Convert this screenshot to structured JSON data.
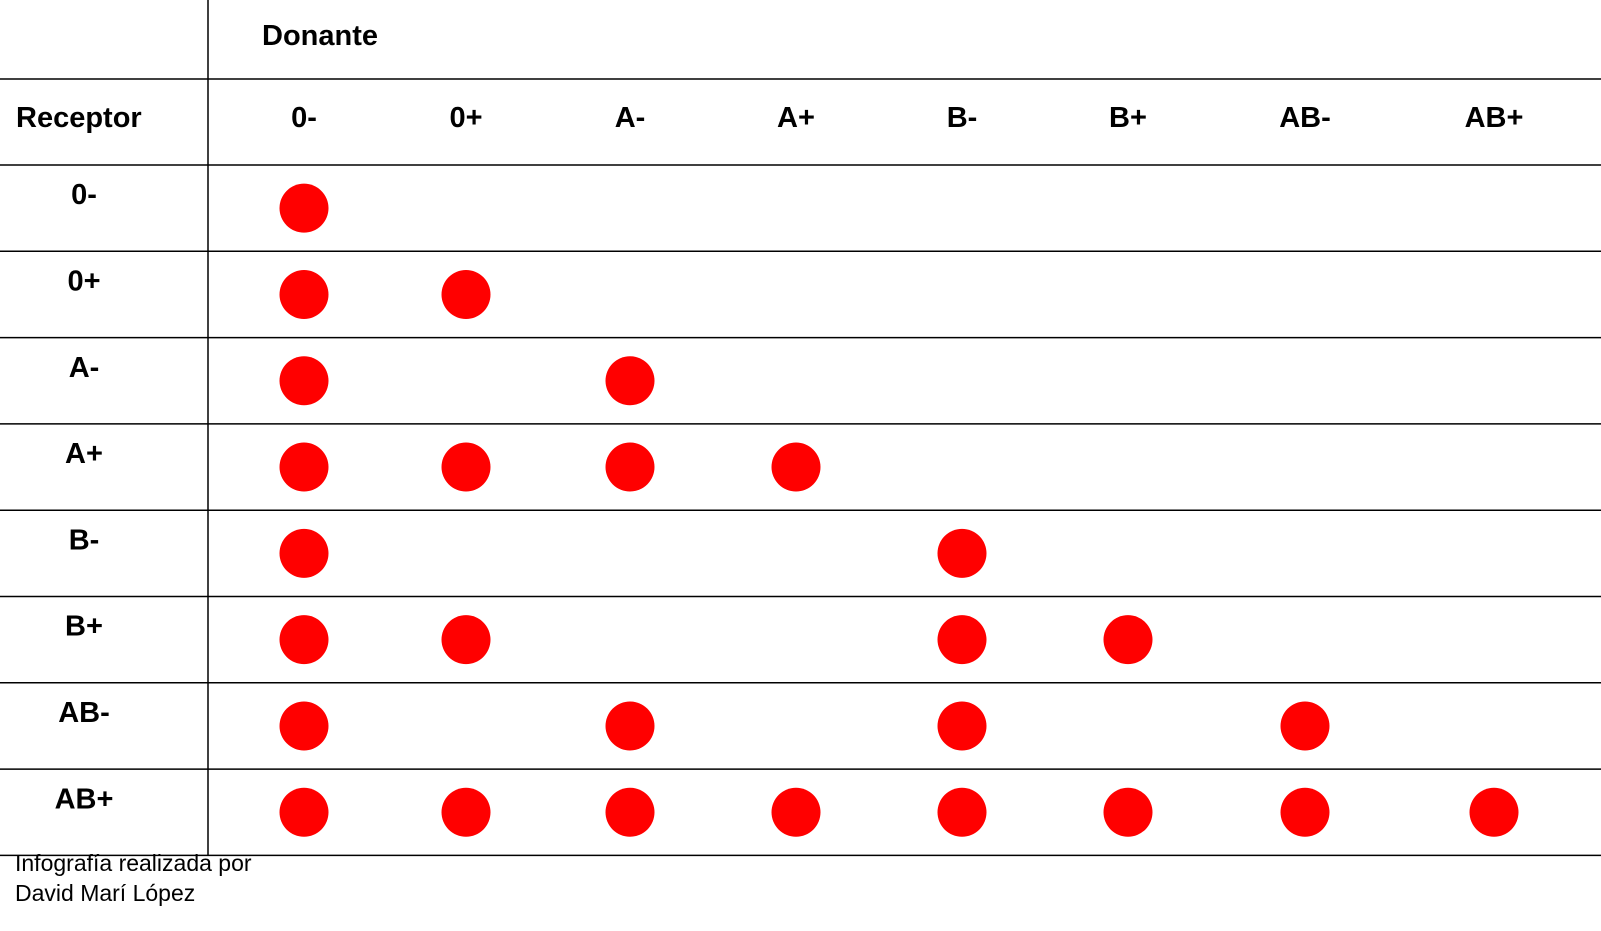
{
  "chart_data": {
    "type": "table",
    "title": "",
    "column_header": "Donante",
    "row_header": "Receptor",
    "columns": [
      "0-",
      "0+",
      "A-",
      "A+",
      "B-",
      "B+",
      "AB-",
      "AB+"
    ],
    "rows": [
      "0-",
      "0+",
      "A-",
      "A+",
      "B-",
      "B+",
      "AB-",
      "AB+"
    ],
    "compatible": [
      [
        1,
        0,
        0,
        0,
        0,
        0,
        0,
        0
      ],
      [
        1,
        1,
        0,
        0,
        0,
        0,
        0,
        0
      ],
      [
        1,
        0,
        1,
        0,
        0,
        0,
        0,
        0
      ],
      [
        1,
        1,
        1,
        1,
        0,
        0,
        0,
        0
      ],
      [
        1,
        0,
        0,
        0,
        1,
        0,
        0,
        0
      ],
      [
        1,
        1,
        0,
        0,
        1,
        1,
        0,
        0
      ],
      [
        1,
        0,
        1,
        0,
        1,
        0,
        1,
        0
      ],
      [
        1,
        1,
        1,
        1,
        1,
        1,
        1,
        1
      ]
    ],
    "marker_color": "#ff0000",
    "grid": true
  },
  "credit": {
    "line1": "Infografía realizada por",
    "line2": "David Marí López"
  }
}
